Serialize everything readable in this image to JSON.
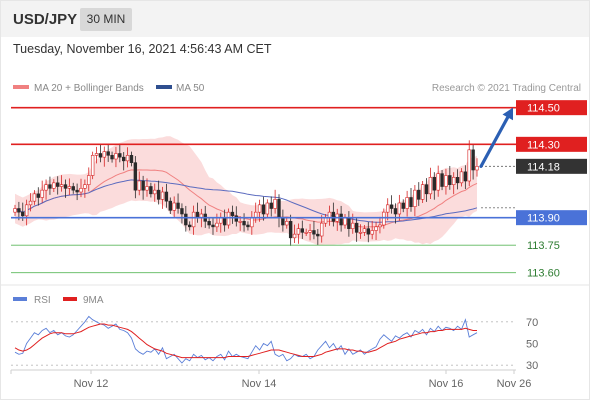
{
  "header": {
    "pair": "USD/JPY",
    "timeframe": "30 MIN",
    "datetime": "Tuesday, November 16, 2021 4:56:43 AM CET"
  },
  "legend": {
    "ma20_label": "MA 20 + Bollinger Bands",
    "ma50_label": "MA 50",
    "credit": "Research © 2021 Trading Central"
  },
  "colors": {
    "up_candle": "#d62424",
    "down_candle": "#2a2a2a",
    "ma20": "#f08080",
    "band_fill": "#fbdcdc",
    "ma50": "#5b6bbf",
    "resistance": "#e02020",
    "support": "#4a72d8",
    "target_green": "#5cb85c",
    "arrow": "#2b5fb3",
    "current_price": "#333333",
    "rsi": "#5b7fd8",
    "rsi_ma": "#e02020"
  },
  "chart_data": [
    {
      "type": "candlestick",
      "title": "USD/JPY 30 MIN",
      "xlabel": "",
      "ylabel": "",
      "ylim": [
        113.5,
        114.58
      ],
      "grid": false,
      "legend_position": "top-left",
      "x_ticks": [
        "Nov 12",
        "Nov 14",
        "Nov 16",
        "Nov 26"
      ],
      "levels": [
        {
          "name": "target-high",
          "value": 114.5,
          "label": "114.50",
          "style": "red-box"
        },
        {
          "name": "resistance",
          "value": 114.3,
          "label": "114.30",
          "style": "red-box"
        },
        {
          "name": "current-price",
          "value": 114.18,
          "label": "114.18",
          "style": "dark-box"
        },
        {
          "name": "pivot",
          "value": 113.9,
          "label": "113.90",
          "style": "blue-box"
        },
        {
          "name": "support-1",
          "value": 113.75,
          "label": "113.75",
          "style": "green-text"
        },
        {
          "name": "support-2",
          "value": 113.6,
          "label": "113.60",
          "style": "green-text"
        }
      ],
      "closes": [
        113.95,
        113.93,
        113.91,
        113.97,
        113.99,
        114.03,
        114.01,
        114.05,
        114.08,
        114.06,
        114.09,
        114.07,
        114.08,
        114.06,
        114.07,
        114.05,
        114.04,
        114.06,
        114.08,
        114.13,
        114.24,
        114.25,
        114.23,
        114.26,
        114.24,
        114.22,
        114.25,
        114.23,
        114.21,
        114.24,
        114.2,
        114.05,
        114.1,
        114.05,
        114.07,
        114.03,
        114.05,
        114.0,
        114.04,
        113.99,
        113.94,
        113.98,
        113.95,
        113.92,
        113.86,
        113.85,
        113.93,
        113.9,
        113.92,
        113.88,
        113.86,
        113.85,
        113.87,
        113.9,
        113.86,
        113.93,
        113.91,
        113.88,
        113.88,
        113.86,
        113.85,
        113.9,
        113.93,
        113.97,
        113.92,
        113.98,
        113.95,
        114.0,
        113.9,
        113.86,
        113.88,
        113.79,
        113.81,
        113.84,
        113.82,
        113.82,
        113.83,
        113.81,
        113.8,
        113.87,
        113.9,
        113.93,
        113.88,
        113.92,
        113.86,
        113.9,
        113.84,
        113.87,
        113.82,
        113.82,
        113.84,
        113.81,
        113.83,
        113.85,
        113.86,
        113.93,
        113.97,
        113.95,
        113.92,
        113.98,
        113.95,
        114.01,
        113.96,
        114.05,
        114.0,
        114.08,
        114.03,
        114.12,
        114.05,
        114.14,
        114.07,
        114.13,
        114.08,
        114.12,
        114.09,
        114.15,
        114.1,
        114.27,
        114.16,
        114.18
      ]
    },
    {
      "type": "line",
      "title": "RSI",
      "series": [
        {
          "name": "RSI",
          "values": [
            42,
            40,
            41,
            50,
            55,
            60,
            58,
            62,
            64,
            60,
            62,
            58,
            60,
            57,
            56,
            58,
            62,
            66,
            70,
            75,
            72,
            70,
            68,
            67,
            64,
            66,
            68,
            63,
            62,
            60,
            55,
            45,
            42,
            40,
            43,
            42,
            45,
            40,
            46,
            36,
            38,
            40,
            36,
            32,
            36,
            34,
            40,
            37,
            39,
            35,
            37,
            34,
            38,
            40,
            35,
            43,
            38,
            40,
            38,
            37,
            36,
            42,
            48,
            44,
            50,
            48,
            52,
            40,
            38,
            40,
            34,
            36,
            40,
            38,
            38,
            40,
            36,
            38,
            44,
            48,
            52,
            46,
            50,
            44,
            48,
            40,
            45,
            40,
            42,
            44,
            40,
            43,
            45,
            47,
            54,
            58,
            55,
            52,
            57,
            55,
            58,
            60,
            56,
            62,
            60,
            63,
            58,
            64,
            61,
            66,
            62,
            65,
            64,
            62,
            66,
            63,
            72,
            56,
            58,
            60
          ]
        },
        {
          "name": "9MA",
          "values": [
            46,
            44,
            43,
            44,
            46,
            49,
            52,
            55,
            57,
            59,
            60,
            60,
            60,
            59,
            59,
            59,
            60,
            61,
            63,
            65,
            66,
            67,
            68,
            68,
            67,
            67,
            66,
            65,
            64,
            63,
            61,
            58,
            55,
            52,
            49,
            47,
            45,
            44,
            43,
            41,
            40,
            39,
            38,
            37,
            37,
            37,
            37,
            37,
            37,
            37,
            37,
            37,
            37,
            37,
            37,
            38,
            38,
            38,
            38,
            38,
            38,
            39,
            40,
            41,
            42,
            43,
            44,
            44,
            44,
            43,
            42,
            41,
            40,
            39,
            38,
            38,
            38,
            38,
            39,
            40,
            42,
            43,
            44,
            45,
            45,
            45,
            44,
            44,
            43,
            43,
            42,
            42,
            43,
            44,
            46,
            48,
            50,
            51,
            52,
            54,
            55,
            56,
            57,
            58,
            59,
            60,
            60,
            61,
            61,
            62,
            62,
            63,
            63,
            63,
            63,
            63,
            64,
            63,
            62,
            62
          ]
        }
      ],
      "ylim": [
        20,
        80
      ],
      "y_ticks": [
        "70",
        "50",
        "30"
      ],
      "guide_lines": [
        70,
        30
      ],
      "legend_position": "top-left"
    }
  ]
}
